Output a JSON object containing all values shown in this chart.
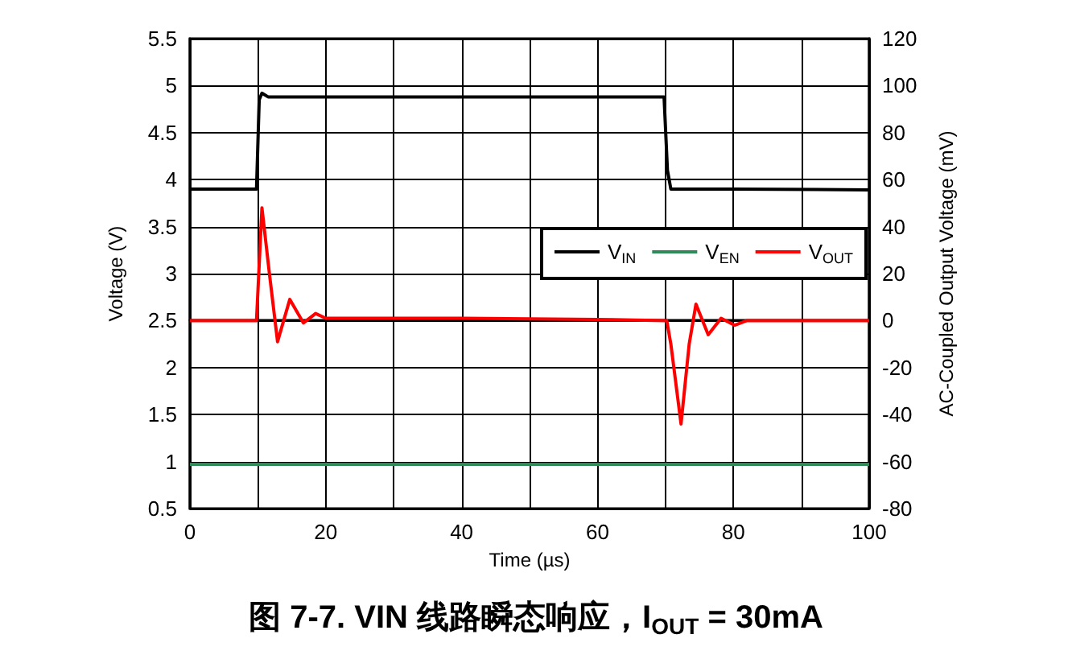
{
  "chart_data": {
    "type": "line",
    "title": "图 7-7. VIN 线路瞬态响应，I$_{OUT}$ = 30mA",
    "xlabel": "Time (µs)",
    "ylabel": "Voltage (V)",
    "y2label": "AC-Coupled Output Voltage (mV)",
    "xlim": [
      0,
      100
    ],
    "xticks": [
      0,
      {
        "value": 10,
        "label": null
      },
      20,
      {
        "value": 30,
        "label": null
      },
      40,
      {
        "value": 50,
        "label": null
      },
      60,
      {
        "value": 70,
        "label": null
      },
      80,
      {
        "value": 90,
        "label": null
      },
      100
    ],
    "ylim": [
      0.5,
      5.5
    ],
    "yticks": [
      0.5,
      1,
      1.5,
      2,
      2.5,
      3,
      3.5,
      4,
      4.5,
      5,
      5.5
    ],
    "y2lim": [
      -80,
      120
    ],
    "y2ticks": [
      -80,
      -60,
      -40,
      -20,
      0,
      20,
      40,
      60,
      80,
      100,
      120
    ],
    "grid": true,
    "legend": "right",
    "marker": "none",
    "line_style": "solid",
    "series": [
      {
        "name": "V$_{IN}$",
        "color": "#000000",
        "x": [
          0,
          9.8,
          10.2,
          10.6,
          11.5,
          20,
          40,
          60,
          69.8,
          70.3,
          70.8,
          80,
          100
        ],
        "values": [
          3.9,
          3.9,
          4.85,
          4.92,
          4.88,
          4.88,
          4.88,
          4.88,
          4.88,
          4.1,
          3.9,
          3.9,
          3.89
        ]
      },
      {
        "name": "V$_{EN}$",
        "color": "#2e8b57",
        "x": [
          0,
          100
        ],
        "values": [
          0.97,
          0.97
        ]
      },
      {
        "name": "V$_{OUT}$",
        "color": "#ff0000",
        "axis": "y2",
        "x": [
          0,
          9.8,
          10.6,
          11.7,
          12.9,
          14.7,
          16.7,
          18.5,
          20,
          40,
          60,
          70.2,
          70.8,
          72.3,
          73.5,
          74.5,
          76.3,
          78.2,
          80.2,
          82,
          100
        ],
        "values": [
          0,
          0,
          48,
          20,
          -9,
          9,
          -1,
          3,
          1,
          1,
          0.5,
          0,
          -10,
          -44,
          -10,
          7,
          -6,
          1,
          -2,
          0,
          0
        ]
      }
    ]
  }
}
